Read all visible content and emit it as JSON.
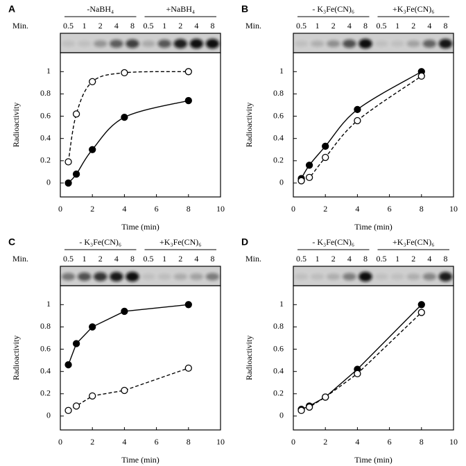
{
  "chart_data": [
    {
      "type": "line",
      "label": "A",
      "smooth": true,
      "gel": {
        "row_label": "Min.",
        "groups": [
          "-NaBH₄",
          "+NaBH₄"
        ],
        "lanes": [
          "0.5",
          "1",
          "2",
          "4",
          "8"
        ]
      },
      "x": [
        0.5,
        1,
        2,
        4,
        8
      ],
      "series": [
        {
          "color": "#000000",
          "marker": "filled",
          "dash": false,
          "values": [
            0,
            0.08,
            0.3,
            0.59,
            0.74
          ]
        },
        {
          "color": "#000000",
          "marker": "open",
          "dash": true,
          "values": [
            0.19,
            0.62,
            0.91,
            0.99,
            1.0
          ]
        }
      ],
      "xlim": [
        0,
        10
      ],
      "xticks": [
        0,
        2,
        4,
        6,
        8,
        10
      ],
      "ylim": [
        -0.125,
        1.17
      ],
      "yticks": [
        0,
        0.2,
        0.4,
        0.6,
        0.8,
        1
      ],
      "xlabel": "Time (min)",
      "ylabel": "Radioactivity"
    },
    {
      "type": "line",
      "label": "B",
      "smooth": true,
      "gel": {
        "row_label": "Min.",
        "groups": [
          "- K₃Fe(CN)₆",
          "+K₃Fe(CN)₆"
        ],
        "lanes": [
          "0.5",
          "1",
          "2",
          "4",
          "8"
        ]
      },
      "x": [
        0.5,
        1,
        2,
        4,
        8
      ],
      "series": [
        {
          "color": "#000000",
          "marker": "filled",
          "dash": false,
          "values": [
            0.04,
            0.16,
            0.33,
            0.66,
            1.0
          ]
        },
        {
          "color": "#000000",
          "marker": "open",
          "dash": true,
          "values": [
            0.02,
            0.05,
            0.23,
            0.56,
            0.96
          ]
        }
      ],
      "xlim": [
        0,
        10
      ],
      "xticks": [
        0,
        2,
        4,
        6,
        8,
        10
      ],
      "ylim": [
        -0.125,
        1.17
      ],
      "yticks": [
        0,
        0.2,
        0.4,
        0.6,
        0.8,
        1
      ],
      "xlabel": "Time (min)",
      "ylabel": "Radioactivity"
    },
    {
      "type": "line",
      "label": "C",
      "smooth": false,
      "gel": {
        "row_label": "Min.",
        "groups": [
          "- K₃Fe(CN)₆",
          "+K₃Fe(CN)₆"
        ],
        "lanes": [
          "0.5",
          "1",
          "2",
          "4",
          "8"
        ]
      },
      "x": [
        0.5,
        1,
        2,
        4,
        8
      ],
      "series": [
        {
          "color": "#000000",
          "marker": "filled",
          "dash": false,
          "values": [
            0.46,
            0.65,
            0.8,
            0.94,
            1.0
          ]
        },
        {
          "color": "#000000",
          "marker": "open",
          "dash": true,
          "values": [
            0.05,
            0.09,
            0.18,
            0.23,
            0.43
          ]
        }
      ],
      "xlim": [
        0,
        10
      ],
      "xticks": [
        0,
        2,
        4,
        6,
        8,
        10
      ],
      "ylim": [
        -0.125,
        1.17
      ],
      "yticks": [
        0,
        0.2,
        0.4,
        0.6,
        0.8,
        1
      ],
      "xlabel": "Time (min)",
      "ylabel": "Radioactivity"
    },
    {
      "type": "line",
      "label": "D",
      "smooth": false,
      "gel": {
        "row_label": "Min.",
        "groups": [
          "- K₃Fe(CN)₆",
          "+K₃Fe(CN)₆"
        ],
        "lanes": [
          "0.5",
          "1",
          "2",
          "4",
          "8"
        ]
      },
      "x": [
        0.5,
        1,
        2,
        4,
        8
      ],
      "series": [
        {
          "color": "#000000",
          "marker": "filled",
          "dash": false,
          "values": [
            0.06,
            0.09,
            0.17,
            0.42,
            1.0
          ]
        },
        {
          "color": "#000000",
          "marker": "open",
          "dash": true,
          "values": [
            0.05,
            0.08,
            0.17,
            0.38,
            0.93
          ]
        }
      ],
      "xlim": [
        0,
        10
      ],
      "xticks": [
        0,
        2,
        4,
        6,
        8,
        10
      ],
      "ylim": [
        -0.125,
        1.17
      ],
      "yticks": [
        0,
        0.2,
        0.4,
        0.6,
        0.8,
        1
      ],
      "xlabel": "Time (min)",
      "ylabel": "Radioactivity"
    }
  ]
}
